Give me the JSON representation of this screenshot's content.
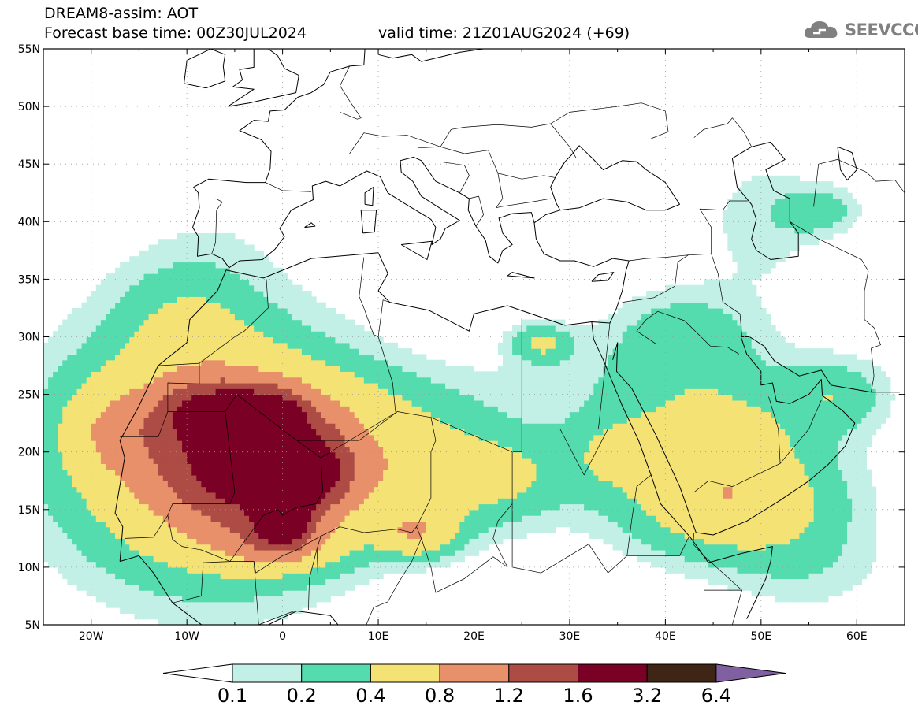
{
  "title": {
    "line1": "DREAM8-assim: AOT",
    "line2": "Forecast base time: 00Z30JUL2024",
    "valid": "valid time: 21Z01AUG2024 (+69)"
  },
  "logo": {
    "text": "SEEVCCC",
    "icon": "cloud-icon",
    "color": "#808080"
  },
  "axes": {
    "lon_ticks": [
      -20,
      -10,
      0,
      10,
      20,
      30,
      40,
      50,
      60
    ],
    "lon_labels": [
      "20W",
      "10W",
      "0",
      "10E",
      "20E",
      "30E",
      "40E",
      "50E",
      "60E"
    ],
    "lat_ticks": [
      55,
      50,
      45,
      40,
      35,
      30,
      25,
      20,
      15,
      10,
      5
    ],
    "lat_labels": [
      "55N",
      "50N",
      "45N",
      "40N",
      "35N",
      "30N",
      "25N",
      "20N",
      "15N",
      "10N",
      "5N"
    ],
    "lon_range": [
      -25,
      65
    ],
    "lat_range": [
      5,
      55
    ],
    "grid": "dotted"
  },
  "colorbar": {
    "levels": [
      "0.1",
      "0.2",
      "0.4",
      "0.8",
      "1.2",
      "1.6",
      "3.2",
      "6.4"
    ],
    "colors": [
      "#ffffff",
      "#c3f0e6",
      "#55dcae",
      "#f5e275",
      "#e8906a",
      "#ad4b45",
      "#7a0025",
      "#3e2515",
      "#8060a0"
    ]
  },
  "field": {
    "variable": "AOT",
    "blobs": [
      {
        "lon": -8,
        "lat": 20,
        "rx": 14,
        "ry": 10,
        "v": 1.0
      },
      {
        "lon": -2,
        "lat": 19,
        "rx": 9,
        "ry": 6,
        "v": 1.2
      },
      {
        "lon": -7,
        "lat": 23.5,
        "rx": 5.5,
        "ry": 2.5,
        "v": 0.8
      },
      {
        "lon": -1,
        "lat": 23,
        "rx": 3,
        "ry": 2,
        "v": 0.9
      },
      {
        "lon": 0,
        "lat": 15,
        "rx": 2.5,
        "ry": 2.5,
        "v": 1.7
      },
      {
        "lon": 4,
        "lat": 18,
        "rx": 3,
        "ry": 3,
        "v": 0.6
      },
      {
        "lon": 15,
        "lat": 18,
        "rx": 12,
        "ry": 5,
        "v": 0.5
      },
      {
        "lon": 14,
        "lat": 13,
        "rx": 4,
        "ry": 2,
        "v": 0.6
      },
      {
        "lon": 0,
        "lat": 12,
        "rx": 6,
        "ry": 2,
        "v": 0.5
      },
      {
        "lon": 45,
        "lat": 20,
        "rx": 11,
        "ry": 7,
        "v": 0.6
      },
      {
        "lon": 48,
        "lat": 15,
        "rx": 10,
        "ry": 4,
        "v": 0.4
      },
      {
        "lon": 42,
        "lat": 30,
        "rx": 7,
        "ry": 4,
        "v": 0.3
      },
      {
        "lon": 58,
        "lat": 25,
        "rx": 5,
        "ry": 3,
        "v": 0.3
      },
      {
        "lon": 35,
        "lat": 20,
        "rx": 5,
        "ry": 3,
        "v": 0.25
      },
      {
        "lon": 23,
        "lat": 18,
        "rx": 7,
        "ry": 3,
        "v": 0.2
      },
      {
        "lon": -18,
        "lat": 22,
        "rx": 5,
        "ry": 4,
        "v": 0.35
      },
      {
        "lon": -10,
        "lat": 32,
        "rx": 7,
        "ry": 5,
        "v": 0.25
      },
      {
        "lon": 10,
        "lat": 24,
        "rx": 12,
        "ry": 4,
        "v": 0.2
      },
      {
        "lon": 30,
        "lat": 27,
        "rx": 8,
        "ry": 4,
        "v": 0.1
      },
      {
        "lon": 50,
        "lat": 40,
        "rx": 6,
        "ry": 6,
        "v": 0.15
      },
      {
        "lon": 56,
        "lat": 41,
        "rx": 4,
        "ry": 2,
        "v": 0.3
      },
      {
        "lon": 5,
        "lat": 47,
        "rx": 10,
        "ry": 3,
        "v": 0.05
      },
      {
        "lon": -5,
        "lat": 40,
        "rx": 10,
        "ry": 5,
        "v": 0.05
      },
      {
        "lon": 55,
        "lat": 10,
        "rx": 8,
        "ry": 4,
        "v": 0.15
      },
      {
        "lon": 27,
        "lat": 29.5,
        "rx": 3,
        "ry": 1.5,
        "v": 0.4
      }
    ]
  }
}
